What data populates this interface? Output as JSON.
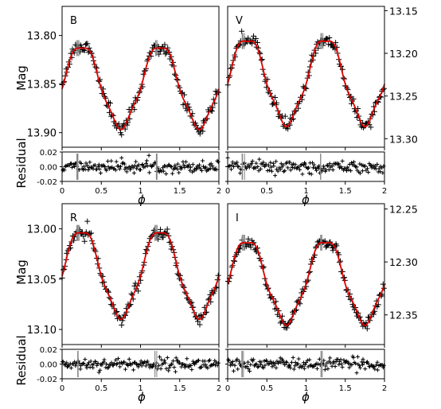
{
  "figure": {
    "xlabel": "ϕ",
    "ylabel": "Mag",
    "residual_label": "Residual"
  },
  "chart_data": [
    {
      "type": "scatter",
      "panel": "B",
      "xlim": [
        0,
        2
      ],
      "ylim": [
        13.77,
        13.915
      ],
      "y_inverted": true,
      "y_ticks": [
        "13.80",
        "13.85",
        "13.90"
      ],
      "y_tick_values": [
        13.8,
        13.85,
        13.9
      ],
      "x_ticks": [
        "0",
        "0.5",
        "1",
        "1.5",
        "2"
      ],
      "model": {
        "mean": 13.852,
        "amplitude": 0.042,
        "peak_phase": 0.25,
        "secondary": 0.003
      },
      "series": [
        {
          "name": "observed",
          "color": "#000000",
          "marker": "+"
        },
        {
          "name": "fit",
          "color": "#e00000",
          "line": "solid"
        }
      ],
      "residual": {
        "ylim": [
          -0.02,
          0.02
        ],
        "y_ticks": [
          "0.02",
          "0.00",
          "-0.02"
        ],
        "scatter": 0.004
      }
    },
    {
      "type": "scatter",
      "panel": "V",
      "xlim": [
        0,
        2
      ],
      "ylim": [
        13.145,
        13.31
      ],
      "y_inverted": true,
      "y_axis_side": "right",
      "y_ticks": [
        "13.15",
        "13.20",
        "13.25",
        "13.30"
      ],
      "y_tick_values": [
        13.15,
        13.2,
        13.25,
        13.3
      ],
      "x_ticks": [
        "0",
        "0.5",
        "1",
        "1.5",
        "2"
      ],
      "model": {
        "mean": 13.232,
        "amplitude": 0.05,
        "peak_phase": 0.25,
        "secondary": 0.004
      },
      "series": [
        {
          "name": "observed",
          "color": "#000000",
          "marker": "+"
        },
        {
          "name": "fit",
          "color": "#e00000",
          "line": "solid"
        }
      ],
      "residual": {
        "ylim": [
          -0.02,
          0.02
        ],
        "y_ticks": [],
        "scatter": 0.004
      }
    },
    {
      "type": "scatter",
      "panel": "R",
      "xlim": [
        0,
        2
      ],
      "ylim": [
        12.975,
        13.115
      ],
      "y_inverted": true,
      "y_ticks": [
        "13.00",
        "13.05",
        "13.10"
      ],
      "y_tick_values": [
        13.0,
        13.05,
        13.1
      ],
      "x_ticks": [
        "0",
        "0.5",
        "1",
        "1.5",
        "2"
      ],
      "model": {
        "mean": 13.044,
        "amplitude": 0.043,
        "peak_phase": 0.25,
        "secondary": 0.003
      },
      "series": [
        {
          "name": "observed",
          "color": "#000000",
          "marker": "+"
        },
        {
          "name": "fit",
          "color": "#e00000",
          "line": "solid"
        }
      ],
      "residual": {
        "ylim": [
          -0.02,
          0.02
        ],
        "y_ticks": [
          "0.02",
          "0.00",
          "-0.02"
        ],
        "scatter": 0.004
      }
    },
    {
      "type": "scatter",
      "panel": "I",
      "xlim": [
        0,
        2
      ],
      "ylim": [
        12.245,
        12.378
      ],
      "y_inverted": true,
      "y_axis_side": "right",
      "y_ticks": [
        "12.25",
        "12.30",
        "12.35"
      ],
      "y_tick_values": [
        12.25,
        12.3,
        12.35
      ],
      "x_ticks": [
        "0",
        "0.5",
        "1",
        "1.5",
        "2"
      ],
      "model": {
        "mean": 12.318,
        "amplitude": 0.039,
        "peak_phase": 0.25,
        "secondary": 0.003
      },
      "series": [
        {
          "name": "observed",
          "color": "#000000",
          "marker": "+"
        },
        {
          "name": "fit",
          "color": "#e00000",
          "line": "solid"
        }
      ],
      "residual": {
        "ylim": [
          -0.02,
          0.02
        ],
        "y_ticks": [],
        "scatter": 0.004
      }
    }
  ]
}
